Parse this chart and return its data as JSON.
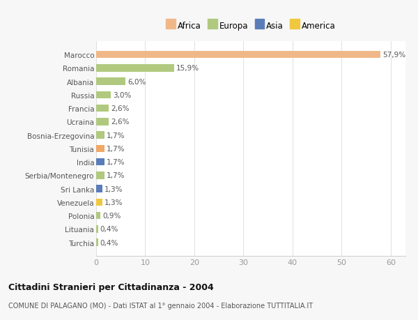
{
  "countries": [
    "Turchia",
    "Lituania",
    "Polonia",
    "Venezuela",
    "Sri Lanka",
    "Serbia/Montenegro",
    "India",
    "Tunisia",
    "Bosnia-Erzegovina",
    "Ucraina",
    "Francia",
    "Russia",
    "Albania",
    "Romania",
    "Marocco"
  ],
  "values": [
    0.4,
    0.4,
    0.9,
    1.3,
    1.3,
    1.7,
    1.7,
    1.7,
    1.7,
    2.6,
    2.6,
    3.0,
    6.0,
    15.9,
    57.9
  ],
  "labels": [
    "0,4%",
    "0,4%",
    "0,9%",
    "1,3%",
    "1,3%",
    "1,7%",
    "1,7%",
    "1,7%",
    "1,7%",
    "2,6%",
    "2,6%",
    "3,0%",
    "6,0%",
    "15,9%",
    "57,9%"
  ],
  "colors": [
    "#b0c97f",
    "#b0c97f",
    "#b0c97f",
    "#f0c840",
    "#5a7db8",
    "#b0c97f",
    "#5a7db8",
    "#f0a868",
    "#b0c97f",
    "#b0c97f",
    "#b0c97f",
    "#b0c97f",
    "#b0c97f",
    "#b0c97f",
    "#f0b888"
  ],
  "legend_labels": [
    "Africa",
    "Europa",
    "Asia",
    "America"
  ],
  "legend_colors": [
    "#f0b888",
    "#b0c97f",
    "#5a7db8",
    "#f0c840"
  ],
  "title": "Cittadini Stranieri per Cittadinanza - 2004",
  "subtitle": "COMUNE DI PALAGANO (MO) - Dati ISTAT al 1° gennaio 2004 - Elaborazione TUTTITALIA.IT",
  "xlim": [
    0,
    63
  ],
  "xticks": [
    0,
    10,
    20,
    30,
    40,
    50,
    60
  ],
  "background_color": "#f7f7f7",
  "bar_background": "#ffffff"
}
